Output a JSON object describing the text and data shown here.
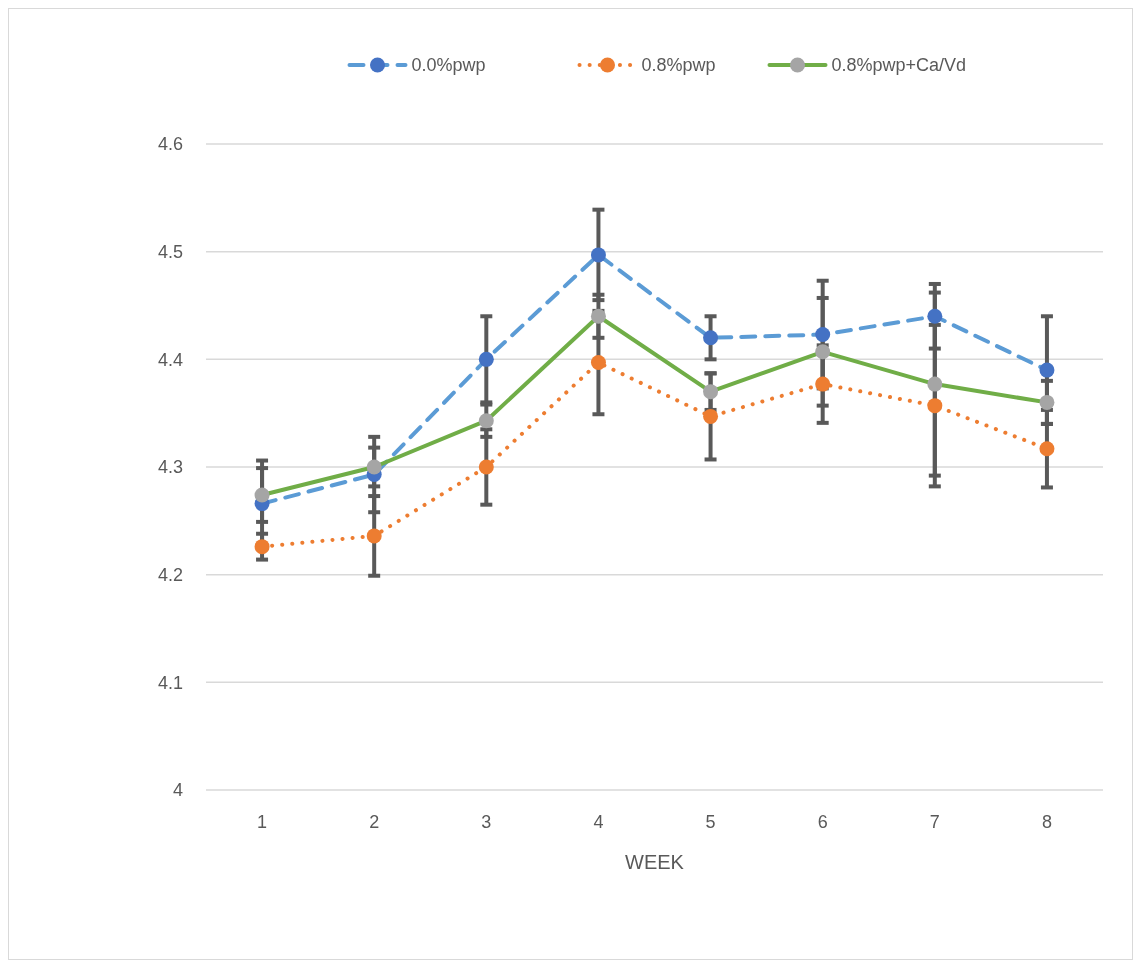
{
  "chart_data": {
    "type": "line",
    "xlabel": "WEEK",
    "categories": [
      "1",
      "2",
      "3",
      "4",
      "5",
      "6",
      "7",
      "8"
    ],
    "ylim": [
      4,
      4.6
    ],
    "yticks": [
      {
        "value": 4,
        "label": "4"
      },
      4.1,
      4.2,
      4.3,
      4.4,
      4.5,
      4.6
    ],
    "grid": "y",
    "legend": "top",
    "marker": "circle",
    "series": [
      {
        "name": "0.0%pwp",
        "color": "#5b9bd5",
        "colors": [
          "#4472c4",
          "#4472c4",
          "#4472c4",
          "#4472c4",
          "#4472c4",
          "#4472c4",
          "#4472c4",
          "#4472c4"
        ],
        "line_style": "dashed",
        "values": [
          4.266,
          4.293,
          4.4,
          4.497,
          4.42,
          4.423,
          4.44,
          4.39
        ],
        "errors": [
          0.04,
          0.035,
          0.04,
          0.042,
          0.02,
          0.05,
          0.03,
          0.05
        ]
      },
      {
        "name": "0.8%pwp",
        "color": "#ed7d31",
        "colors": [
          "#ed7d31",
          "#ed7d31",
          "#ed7d31",
          "#ed7d31",
          "#ed7d31",
          "#ed7d31",
          "#ed7d31",
          "#ed7d31"
        ],
        "line_style": "dotted",
        "values": [
          4.226,
          4.236,
          4.3,
          4.397,
          4.347,
          4.377,
          4.357,
          4.317
        ],
        "errors": [
          0.012,
          0.037,
          0.035,
          0.048,
          0.04,
          0.036,
          0.075,
          0.036
        ]
      },
      {
        "name": "0.8%pwp+Ca/Vd",
        "color": "#70ad47",
        "colors": [
          "#a5a5a5",
          "#a5a5a5",
          "#a5a5a5",
          "#a5a5a5",
          "#a5a5a5",
          "#a5a5a5",
          "#a5a5a5",
          "#a5a5a5"
        ],
        "line_style": "solid",
        "values": [
          4.274,
          4.3,
          4.343,
          4.44,
          4.37,
          4.407,
          4.377,
          4.36
        ],
        "errors": [
          0.025,
          0.018,
          0.015,
          0.02,
          0.017,
          0.05,
          0.085,
          0.02
        ]
      }
    ]
  }
}
